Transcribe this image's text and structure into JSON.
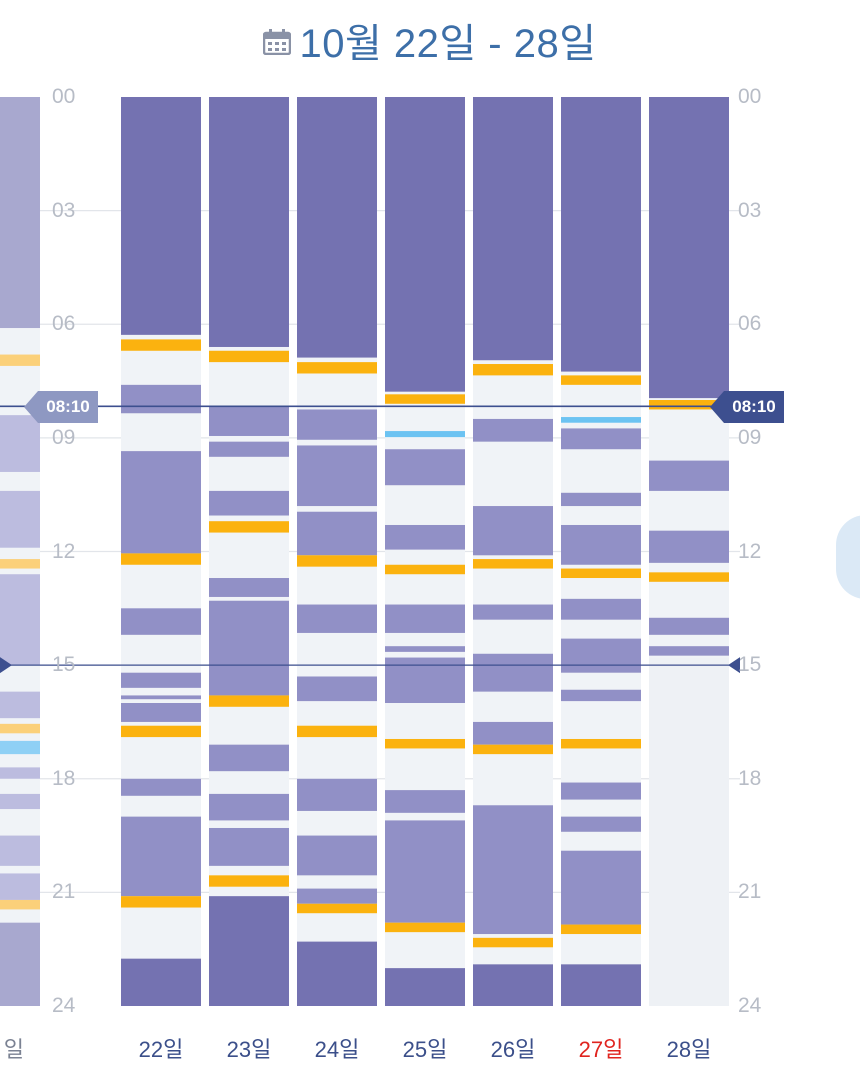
{
  "header": {
    "title": "10월 22일 - 28일",
    "icon": "calendar-icon",
    "title_color": "#3d6fa8"
  },
  "hour_labels": [
    "00",
    "03",
    "06",
    "09",
    "12",
    "15",
    "18",
    "21",
    "24"
  ],
  "current_time": "08:10",
  "day_labels": [
    {
      "label": "22일"
    },
    {
      "label": "23일"
    },
    {
      "label": "24일"
    },
    {
      "label": "25일"
    },
    {
      "label": "26일"
    },
    {
      "label": "27일",
      "today": true
    },
    {
      "label": "28일"
    }
  ],
  "prev_week_day_label": "일",
  "colors": {
    "night_sleep": "#7472b1",
    "nap": "#9190c6",
    "feeding": "#fbb20f",
    "medicine": "#6cc3f2",
    "awake": "#f0f3f7",
    "prev_night": "#a8a8cf",
    "prev_nap": "#bcbcdf",
    "prev_feeding": "#fbd07a",
    "today_label": "#e0241f",
    "day_label": "#3b4f8a",
    "hour_label": "#b7bcc6",
    "now_badge": "#3d4f8f"
  },
  "days": [
    {
      "events": [
        {
          "t": "night",
          "s": 0,
          "e": 6.28
        },
        {
          "t": "feed",
          "s": 6.4,
          "e": 6.7
        },
        {
          "t": "nap",
          "s": 7.6,
          "e": 8.35
        },
        {
          "t": "nap",
          "s": 9.35,
          "e": 12.05
        },
        {
          "t": "feed",
          "s": 12.05,
          "e": 12.35
        },
        {
          "t": "nap",
          "s": 13.5,
          "e": 14.2
        },
        {
          "t": "nap",
          "s": 15.2,
          "e": 15.6
        },
        {
          "t": "nap",
          "s": 15.8,
          "e": 15.9
        },
        {
          "t": "nap",
          "s": 16.0,
          "e": 16.5
        },
        {
          "t": "feed",
          "s": 16.6,
          "e": 16.9
        },
        {
          "t": "nap",
          "s": 18.0,
          "e": 18.45
        },
        {
          "t": "nap",
          "s": 19.0,
          "e": 21.1
        },
        {
          "t": "feed",
          "s": 21.1,
          "e": 21.4
        },
        {
          "t": "night",
          "s": 22.75,
          "e": 24
        }
      ]
    },
    {
      "events": [
        {
          "t": "night",
          "s": 0,
          "e": 6.6
        },
        {
          "t": "feed",
          "s": 6.7,
          "e": 7.0
        },
        {
          "t": "nap",
          "s": 8.15,
          "e": 8.95
        },
        {
          "t": "nap",
          "s": 9.1,
          "e": 9.5
        },
        {
          "t": "nap",
          "s": 10.4,
          "e": 11.05
        },
        {
          "t": "feed",
          "s": 11.2,
          "e": 11.5
        },
        {
          "t": "nap",
          "s": 12.7,
          "e": 13.2
        },
        {
          "t": "nap",
          "s": 13.3,
          "e": 15.8
        },
        {
          "t": "feed",
          "s": 15.8,
          "e": 16.1
        },
        {
          "t": "nap",
          "s": 17.1,
          "e": 17.8
        },
        {
          "t": "nap",
          "s": 18.4,
          "e": 19.1
        },
        {
          "t": "nap",
          "s": 19.3,
          "e": 20.3
        },
        {
          "t": "feed",
          "s": 20.55,
          "e": 20.85
        },
        {
          "t": "night",
          "s": 21.1,
          "e": 24
        }
      ]
    },
    {
      "events": [
        {
          "t": "night",
          "s": 0,
          "e": 6.88
        },
        {
          "t": "feed",
          "s": 7.0,
          "e": 7.3
        },
        {
          "t": "nap",
          "s": 8.25,
          "e": 9.05
        },
        {
          "t": "nap",
          "s": 9.2,
          "e": 10.8
        },
        {
          "t": "nap",
          "s": 10.95,
          "e": 12.1
        },
        {
          "t": "feed",
          "s": 12.1,
          "e": 12.4
        },
        {
          "t": "nap",
          "s": 13.4,
          "e": 14.15
        },
        {
          "t": "nap",
          "s": 15.3,
          "e": 15.95
        },
        {
          "t": "feed",
          "s": 16.6,
          "e": 16.9
        },
        {
          "t": "nap",
          "s": 18.0,
          "e": 18.85
        },
        {
          "t": "nap",
          "s": 19.5,
          "e": 20.55
        },
        {
          "t": "nap",
          "s": 20.9,
          "e": 21.3
        },
        {
          "t": "feed",
          "s": 21.3,
          "e": 21.55
        },
        {
          "t": "night",
          "s": 22.3,
          "e": 24
        }
      ]
    },
    {
      "events": [
        {
          "t": "night",
          "s": 0,
          "e": 7.78
        },
        {
          "t": "feed",
          "s": 7.85,
          "e": 8.1
        },
        {
          "t": "med",
          "s": 8.82,
          "e": 8.98
        },
        {
          "t": "nap",
          "s": 9.3,
          "e": 10.25
        },
        {
          "t": "nap",
          "s": 11.3,
          "e": 11.95
        },
        {
          "t": "feed",
          "s": 12.35,
          "e": 12.6
        },
        {
          "t": "nap",
          "s": 13.4,
          "e": 14.15
        },
        {
          "t": "nap",
          "s": 14.5,
          "e": 14.65
        },
        {
          "t": "nap",
          "s": 14.8,
          "e": 16.0
        },
        {
          "t": "feed",
          "s": 16.95,
          "e": 17.2
        },
        {
          "t": "nap",
          "s": 18.3,
          "e": 18.9
        },
        {
          "t": "nap",
          "s": 19.1,
          "e": 21.8
        },
        {
          "t": "feed",
          "s": 21.8,
          "e": 22.05
        },
        {
          "t": "night",
          "s": 23.0,
          "e": 24
        }
      ]
    },
    {
      "events": [
        {
          "t": "night",
          "s": 0,
          "e": 6.95
        },
        {
          "t": "feed",
          "s": 7.05,
          "e": 7.35
        },
        {
          "t": "nap",
          "s": 8.5,
          "e": 9.1
        },
        {
          "t": "nap",
          "s": 10.8,
          "e": 12.1
        },
        {
          "t": "feed",
          "s": 12.2,
          "e": 12.45
        },
        {
          "t": "nap",
          "s": 13.4,
          "e": 13.8
        },
        {
          "t": "nap",
          "s": 14.7,
          "e": 15.7
        },
        {
          "t": "nap",
          "s": 16.5,
          "e": 17.1
        },
        {
          "t": "feed",
          "s": 17.1,
          "e": 17.35
        },
        {
          "t": "nap",
          "s": 18.7,
          "e": 22.1
        },
        {
          "t": "feed",
          "s": 22.2,
          "e": 22.45
        },
        {
          "t": "night",
          "s": 22.9,
          "e": 24
        }
      ]
    },
    {
      "events": [
        {
          "t": "night",
          "s": 0,
          "e": 7.25
        },
        {
          "t": "feed",
          "s": 7.35,
          "e": 7.6
        },
        {
          "t": "med",
          "s": 8.45,
          "e": 8.6
        },
        {
          "t": "nap",
          "s": 8.75,
          "e": 9.3
        },
        {
          "t": "nap",
          "s": 10.45,
          "e": 10.8
        },
        {
          "t": "nap",
          "s": 11.3,
          "e": 12.35
        },
        {
          "t": "feed",
          "s": 12.45,
          "e": 12.7
        },
        {
          "t": "nap",
          "s": 13.25,
          "e": 13.8
        },
        {
          "t": "nap",
          "s": 14.3,
          "e": 15.2
        },
        {
          "t": "nap",
          "s": 15.65,
          "e": 15.95
        },
        {
          "t": "feed",
          "s": 16.95,
          "e": 17.2
        },
        {
          "t": "nap",
          "s": 18.1,
          "e": 18.55
        },
        {
          "t": "nap",
          "s": 19.0,
          "e": 19.4
        },
        {
          "t": "nap",
          "s": 19.9,
          "e": 21.85
        },
        {
          "t": "feed",
          "s": 21.85,
          "e": 22.1
        },
        {
          "t": "night",
          "s": 22.9,
          "e": 24
        }
      ]
    },
    {
      "events": [
        {
          "t": "night",
          "s": 0,
          "e": 7.95
        },
        {
          "t": "feed",
          "s": 8.0,
          "e": 8.25
        },
        {
          "t": "nap",
          "s": 9.6,
          "e": 10.4
        },
        {
          "t": "nap",
          "s": 11.45,
          "e": 12.3
        },
        {
          "t": "feed",
          "s": 12.55,
          "e": 12.8
        },
        {
          "t": "nap",
          "s": 13.75,
          "e": 14.2
        },
        {
          "t": "nap",
          "s": 14.5,
          "e": 14.75
        }
      ],
      "recorded_until": 14.8
    },
    {
      "prev": true,
      "events": [
        {
          "t": "night",
          "s": 0,
          "e": 6.1
        },
        {
          "t": "feed",
          "s": 6.8,
          "e": 7.1
        },
        {
          "t": "nap",
          "s": 8.4,
          "e": 9.9
        },
        {
          "t": "nap",
          "s": 10.4,
          "e": 11.9
        },
        {
          "t": "feed",
          "s": 12.2,
          "e": 12.45
        },
        {
          "t": "nap",
          "s": 12.6,
          "e": 15.0
        },
        {
          "t": "nap",
          "s": 15.7,
          "e": 16.4
        },
        {
          "t": "feed",
          "s": 16.55,
          "e": 16.8
        },
        {
          "t": "med",
          "s": 17.0,
          "e": 17.35
        },
        {
          "t": "nap",
          "s": 17.7,
          "e": 18.0
        },
        {
          "t": "nap",
          "s": 18.4,
          "e": 18.8
        },
        {
          "t": "nap",
          "s": 19.5,
          "e": 20.3
        },
        {
          "t": "nap",
          "s": 20.5,
          "e": 21.2
        },
        {
          "t": "feed",
          "s": 21.2,
          "e": 21.45
        },
        {
          "t": "night",
          "s": 21.8,
          "e": 24
        }
      ]
    }
  ]
}
